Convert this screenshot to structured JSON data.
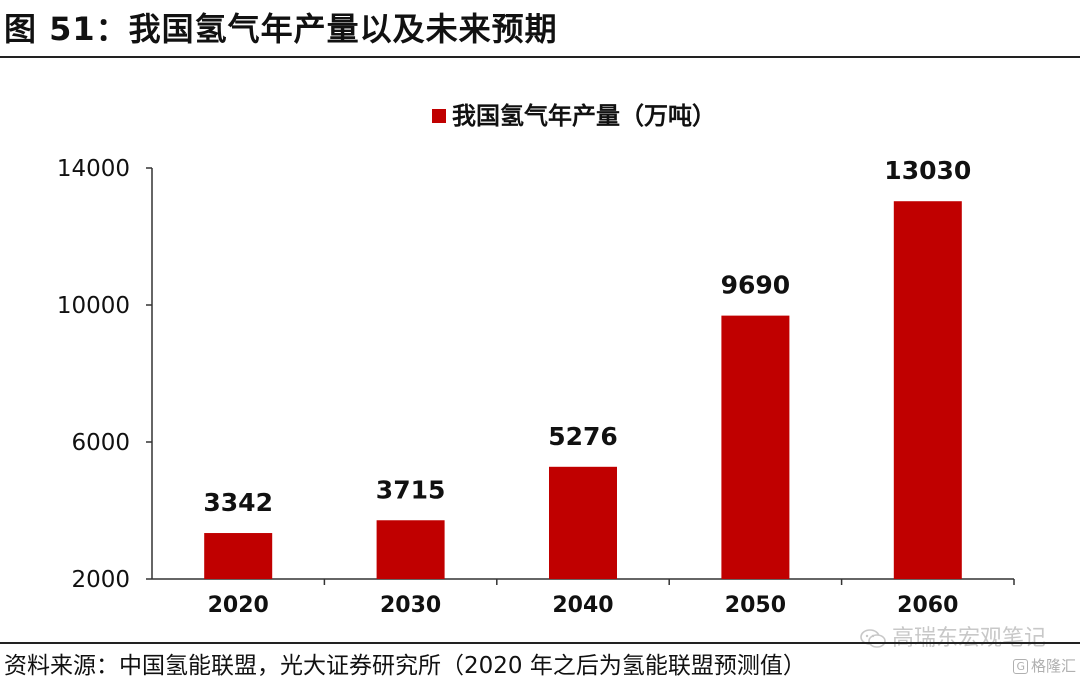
{
  "figure": {
    "title": "图 51：我国氢气年产量以及未来预期"
  },
  "source": {
    "text": "资料来源：中国氢能联盟，光大证券研究所（2020 年之后为氢能联盟预测值）"
  },
  "watermark": {
    "text": "高瑞东宏观笔记",
    "icon": "wechat-icon"
  },
  "corner_mark": {
    "logo": "G",
    "text": "格隆汇"
  },
  "colors": {
    "bar": "#c00000",
    "axis": "#333333",
    "text": "#111111"
  },
  "chart_data": {
    "type": "bar",
    "title": "",
    "xlabel": "",
    "ylabel": "",
    "categories": [
      "2020",
      "2030",
      "2040",
      "2050",
      "2060"
    ],
    "series": [
      {
        "name": "我国氢气年产量（万吨）",
        "values": [
          3342,
          3715,
          5276,
          9690,
          13030
        ]
      }
    ],
    "data_labels": [
      "3342",
      "3715",
      "5276",
      "9690",
      "13030"
    ],
    "ylim": [
      2000,
      14000
    ],
    "yticks": [
      2000,
      6000,
      10000,
      14000
    ],
    "ytick_labels": [
      "2000",
      "6000",
      "10000",
      "14000"
    ],
    "grid": false,
    "legend": "top-center"
  }
}
